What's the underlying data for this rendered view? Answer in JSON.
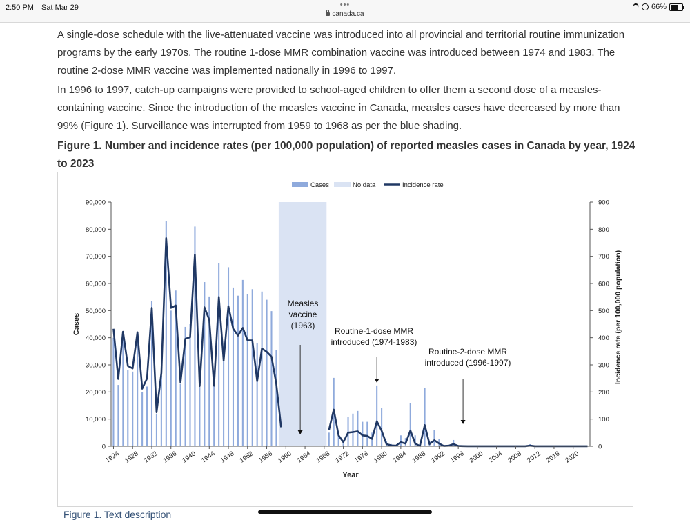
{
  "status": {
    "time": "2:50 PM",
    "date": "Sat Mar 29",
    "battery": "66%",
    "battery_level": 0.66,
    "dots": "•••"
  },
  "browser": {
    "url": "canada.ca"
  },
  "content": {
    "paragraph_1": "A single-dose schedule with the live-attenuated vaccine was introduced into all provincial and territorial routine immunization programs by the early 1970s. The routine 1-dose MMR combination vaccine was introduced between 1974 and 1983. The routine 2-dose MMR vaccine was implemented nationally in 1996 to 1997.",
    "paragraph_2": "In 1996 to 1997, catch-up campaigns were provided to school-aged children to offer them a second dose of a measles-containing vaccine. Since the introduction of the measles vaccine in Canada, measles cases have decreased by more than 99% (Figure 1). Surveillance was interrupted from 1959 to 1968 as per the blue shading.",
    "figure_title": "Figure 1. Number and incidence rates (per 100,000 population) of reported measles cases in Canada by year, 1924 to 2023",
    "figure_link": "Figure 1. Text description"
  },
  "chart_data": {
    "type": "bar",
    "title": "",
    "xlabel": "Year",
    "ylabel": "Cases",
    "y2label": "Incidence rate (per 100,000 population)",
    "ylim": [
      0,
      90000
    ],
    "y2lim": [
      0,
      900
    ],
    "y_ticks": [
      "0",
      "10,000",
      "20,000",
      "30,000",
      "40,000",
      "50,000",
      "60,000",
      "70,000",
      "80,000",
      "90,000"
    ],
    "y2_ticks": [
      "0",
      "100",
      "200",
      "300",
      "400",
      "500",
      "600",
      "700",
      "800",
      "900"
    ],
    "x_ticks": [
      "1924",
      "1928",
      "1932",
      "1936",
      "1940",
      "1944",
      "1948",
      "1952",
      "1956",
      "1960",
      "1964",
      "1968",
      "1972",
      "1976",
      "1980",
      "1984",
      "1988",
      "1992",
      "1996",
      "2000",
      "2004",
      "2008",
      "2012",
      "2016",
      "2020"
    ],
    "x_start": 1924,
    "x_end": 2023,
    "legend": {
      "position": "top-center",
      "cases": "Cases",
      "no_data": "No data",
      "incidence": "Incidence rate"
    },
    "colors": {
      "cases": "#8faadc",
      "no_data": "#dae3f3",
      "incidence": "#203864"
    },
    "no_data_range": [
      1959,
      1968
    ],
    "series": [
      {
        "name": "Cases",
        "axis": "left",
        "x": [
          1924,
          1925,
          1926,
          1927,
          1928,
          1929,
          1930,
          1931,
          1932,
          1933,
          1934,
          1935,
          1936,
          1937,
          1938,
          1939,
          1940,
          1941,
          1942,
          1943,
          1944,
          1945,
          1946,
          1947,
          1948,
          1949,
          1950,
          1951,
          1952,
          1953,
          1954,
          1955,
          1956,
          1957,
          1958,
          1969,
          1970,
          1971,
          1972,
          1973,
          1974,
          1975,
          1976,
          1977,
          1978,
          1979,
          1980,
          1981,
          1982,
          1983,
          1984,
          1985,
          1986,
          1987,
          1988,
          1989,
          1990,
          1991,
          1992,
          1993,
          1994,
          1995,
          1996,
          1997,
          1998,
          1999,
          2000,
          2001,
          2002,
          2003,
          2004,
          2005,
          2006,
          2007,
          2008,
          2009,
          2010,
          2011,
          2012,
          2013,
          2014,
          2015,
          2016,
          2017,
          2018,
          2019,
          2020,
          2021,
          2022,
          2023
        ],
        "values": [
          40000,
          22600,
          40500,
          28000,
          27500,
          40000,
          20000,
          22000,
          53500,
          12000,
          26000,
          83000,
          50000,
          57400,
          23000,
          44000,
          45000,
          81000,
          22000,
          60500,
          55200,
          24000,
          67600,
          35000,
          66000,
          58500,
          55500,
          61300,
          56000,
          57900,
          38000,
          57000,
          54000,
          49800,
          35500,
          5000,
          25200,
          4000,
          2000,
          10800,
          12000,
          13000,
          9000,
          9000,
          5000,
          22400,
          14000,
          2000,
          800,
          500,
          4000,
          3000,
          15800,
          4000,
          1000,
          21400,
          2000,
          6000,
          2800,
          200,
          500,
          2300,
          400,
          100,
          50,
          50,
          50,
          50,
          50,
          50,
          50,
          50,
          50,
          50,
          50,
          50,
          50,
          750,
          50,
          50,
          50,
          50,
          50,
          50,
          50,
          50,
          50,
          50,
          50,
          50
        ]
      },
      {
        "name": "Incidence rate",
        "axis": "right",
        "x": [
          1924,
          1925,
          1926,
          1927,
          1928,
          1929,
          1930,
          1931,
          1932,
          1933,
          1934,
          1935,
          1936,
          1937,
          1938,
          1939,
          1940,
          1941,
          1942,
          1943,
          1944,
          1945,
          1946,
          1947,
          1948,
          1949,
          1950,
          1951,
          1952,
          1953,
          1954,
          1955,
          1956,
          1957,
          1958,
          1959
        ],
        "values": [
          433,
          248,
          422,
          296,
          287,
          420,
          212,
          250,
          510,
          125,
          270,
          767,
          510,
          519,
          235,
          396,
          402,
          706,
          222,
          512,
          466,
          223,
          550,
          316,
          516,
          433,
          408,
          436,
          390,
          390,
          240,
          360,
          348,
          330,
          230,
          70
        ]
      },
      {
        "name": "Incidence rate",
        "axis": "right",
        "x": [
          1969,
          1970,
          1971,
          1972,
          1973,
          1974,
          1975,
          1976,
          1977,
          1978,
          1979,
          1980,
          1981,
          1982,
          1983,
          1984,
          1985,
          1986,
          1987,
          1988,
          1989,
          1990,
          1991,
          1992,
          1993,
          1994,
          1995,
          1996,
          1997,
          1998,
          1999,
          2000,
          2001,
          2002,
          2003,
          2004,
          2005,
          2006,
          2007,
          2008,
          2009,
          2010,
          2011,
          2012,
          2013,
          2014,
          2015,
          2016,
          2017,
          2018,
          2019,
          2020,
          2021,
          2022,
          2023
        ],
        "values": [
          60,
          135,
          40,
          15,
          50,
          52,
          55,
          40,
          38,
          27,
          92,
          57,
          8,
          3,
          2,
          15,
          10,
          58,
          10,
          1,
          78,
          8,
          22,
          10,
          1,
          2,
          8,
          1,
          0.5,
          0.3,
          0.3,
          0.3,
          0.3,
          0.3,
          0.3,
          0.3,
          0.3,
          0.3,
          0.3,
          0.3,
          0.3,
          0.3,
          2.2,
          0.3,
          0.3,
          0.3,
          0.3,
          0.3,
          0.3,
          0.3,
          0.3,
          0.3,
          0.3,
          0.3,
          0.3
        ]
      }
    ],
    "annotations": [
      {
        "lines": [
          "Measles",
          "vaccine",
          "(1963)"
        ],
        "year": 1963
      },
      {
        "lines": [
          "Routine-1-dose MMR",
          "introduced (1974-1983)"
        ],
        "year": 1979
      },
      {
        "lines": [
          "Routine-2-dose MMR",
          "introduced (1996-1997)"
        ],
        "year": 1997
      }
    ]
  }
}
